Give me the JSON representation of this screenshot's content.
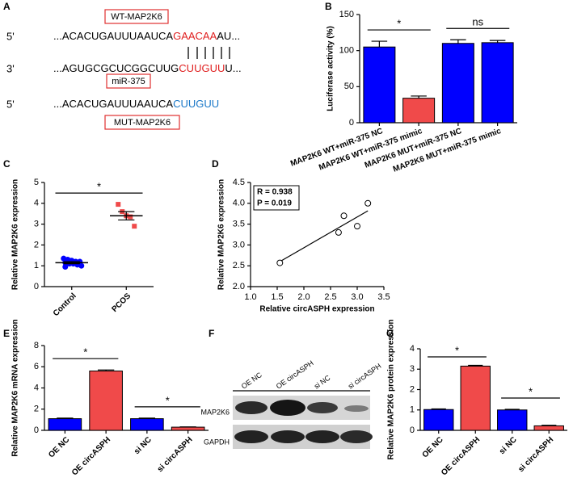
{
  "panel_a": {
    "label": "A",
    "wt_box": "WT-MAP2K6",
    "mir_box": "miR-375",
    "mut_box": "MUT-MAP2K6",
    "wt": {
      "end": "5'",
      "seq": "...ACACUGAUUUAAUCA",
      "site": "GAACAA",
      "tail": "AU..."
    },
    "mir": {
      "end": "3'",
      "seq": "...AGUGCGCUCGGCUUG",
      "site": "CUUGUU",
      "tail": "U..."
    },
    "mut": {
      "end": "5'",
      "seq": "...ACACUGAUUUAAUCA",
      "site": "CUUGUU"
    }
  },
  "panel_f": {
    "label": "F",
    "lanes": [
      "OE NC",
      "OE circASPH",
      "si NC",
      "si circASPH"
    ],
    "rows": [
      "MAP2K6",
      "GAPDH"
    ]
  },
  "chart_data": [
    {
      "type": "bar",
      "label": "B",
      "y_label": "Luciferase activity (%)",
      "categories": [
        "MAP2K6 WT+miR-375 NC",
        "MAP2K6 WT+miR-375 mimic",
        "MAP2K6 MUT+miR-375 NC",
        "MAP2K6 MUT+miR-375 mimic"
      ],
      "values": [
        105,
        34,
        110,
        111
      ],
      "errors": [
        8,
        3,
        5,
        3
      ],
      "colors": [
        "#0000ff",
        "#f04a4a",
        "#0000ff",
        "#0000ff"
      ],
      "ylim": [
        0,
        150
      ],
      "yticks": [
        0,
        50,
        100,
        150
      ],
      "annotations": [
        {
          "text": "*",
          "between": [
            0,
            1
          ]
        },
        {
          "text": "ns",
          "between": [
            2,
            3
          ]
        }
      ]
    },
    {
      "type": "strip",
      "label": "C",
      "y_label": "Relative MAP2K6 expression",
      "categories": [
        "Control",
        "PCOS"
      ],
      "points": [
        [
          1.35,
          1.3,
          1.25,
          1.2,
          1.2,
          1.15,
          1.1,
          1.1,
          1.05,
          1.0,
          0.95,
          1.25
        ],
        [
          3.95,
          3.6,
          3.4,
          3.35,
          2.9
        ]
      ],
      "means": [
        1.15,
        3.4
      ],
      "errors": [
        0.05,
        0.2
      ],
      "colors": [
        "#0000ff",
        "#f04a4a"
      ],
      "ylim": [
        0,
        5
      ],
      "yticks": [
        0,
        1,
        2,
        3,
        4,
        5
      ],
      "annotations": [
        {
          "text": "*",
          "between": [
            0,
            1
          ]
        }
      ]
    },
    {
      "type": "scatter",
      "label": "D",
      "x_label": "Relative circASPH expression",
      "y_label": "Relative MAP2K6 expression",
      "x": [
        1.55,
        2.65,
        2.75,
        3.0,
        3.2
      ],
      "y": [
        2.57,
        3.3,
        3.7,
        3.45,
        4.0
      ],
      "fit_line": {
        "x": [
          1.55,
          3.2
        ],
        "y": [
          2.6,
          3.82
        ]
      },
      "stats": [
        "R = 0.938",
        "P = 0.019"
      ],
      "xlim": [
        1.0,
        3.5
      ],
      "xticks": [
        {
          "value": 1,
          "label": "1.0"
        },
        {
          "value": 1.5,
          "label": "1.5"
        },
        {
          "value": 2,
          "label": "2.0"
        },
        {
          "value": 2.5,
          "label": "2.5"
        },
        {
          "value": 3,
          "label": "3.0"
        },
        {
          "value": 3.5,
          "label": "3.5"
        }
      ],
      "ylim": [
        2.0,
        4.5
      ],
      "yticks": [
        {
          "value": 2,
          "label": "2.0"
        },
        {
          "value": 2.5,
          "label": "2.5"
        },
        {
          "value": 3,
          "label": "3.0"
        },
        {
          "value": 3.5,
          "label": "3.5"
        },
        {
          "value": 4,
          "label": "4.0"
        },
        {
          "value": 4.5,
          "label": "4.5"
        }
      ]
    },
    {
      "type": "bar",
      "label": "E",
      "y_label": "Relative MAP2K6 mRNA expression",
      "categories": [
        "OE NC",
        "OE circASPH",
        "si NC",
        "si circASPH"
      ],
      "values": [
        1.1,
        5.6,
        1.1,
        0.3
      ],
      "errors": [
        0.05,
        0.1,
        0.05,
        0.03
      ],
      "colors": [
        "#0000ff",
        "#f04a4a",
        "#0000ff",
        "#f04a4a"
      ],
      "ylim": [
        0,
        8
      ],
      "yticks": [
        0,
        2,
        4,
        6,
        8
      ],
      "annotations": [
        {
          "text": "*",
          "between": [
            0,
            1
          ]
        },
        {
          "text": "*",
          "between": [
            2,
            3
          ]
        }
      ]
    },
    {
      "type": "bar",
      "label": "G",
      "y_label": "Relative MAP2K6 protein expression",
      "categories": [
        "OE NC",
        "OE circASPH",
        "si NC",
        "si circASPH"
      ],
      "values": [
        1.02,
        3.15,
        1.0,
        0.22
      ],
      "errors": [
        0.03,
        0.04,
        0.03,
        0.03
      ],
      "colors": [
        "#0000ff",
        "#f04a4a",
        "#0000ff",
        "#f04a4a"
      ],
      "ylim": [
        0,
        4
      ],
      "yticks": [
        0,
        1,
        2,
        3,
        4
      ],
      "annotations": [
        {
          "text": "*",
          "between": [
            0,
            1
          ]
        },
        {
          "text": "*",
          "between": [
            2,
            3
          ]
        }
      ]
    }
  ]
}
